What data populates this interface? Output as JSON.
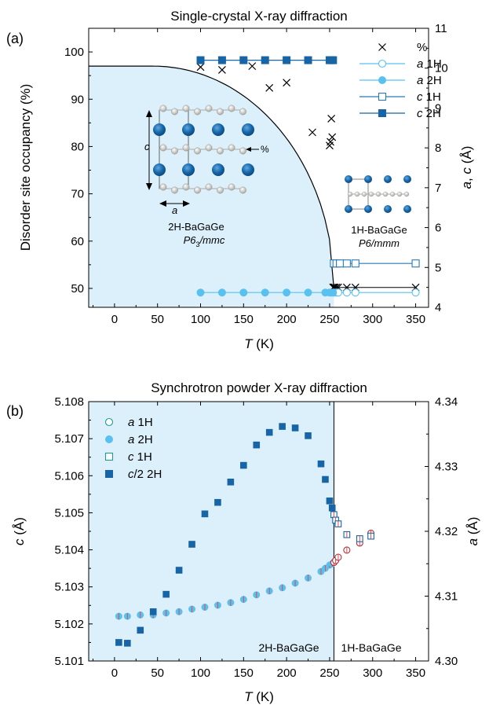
{
  "chart_data": [
    {
      "panel_label": "(a)",
      "type": "scatter",
      "title": "Single-crystal X-ray diffraction",
      "xlabel": "T (K)",
      "xlabel_italic": "T",
      "xlabel_unit": "(K)",
      "ylabel": "Disorder site occupancy (%)",
      "y2label": "a, c (Å)",
      "xlim": [
        -30,
        365
      ],
      "ylim": [
        46,
        105
      ],
      "y2lim": [
        4,
        11
      ],
      "xticks": [
        0,
        50,
        100,
        150,
        200,
        250,
        300,
        350
      ],
      "yticks": [
        50,
        60,
        70,
        80,
        90,
        100
      ],
      "y2ticks": [
        4,
        5,
        6,
        7,
        8,
        9,
        10,
        11
      ],
      "legend_position": "top-right",
      "legend": [
        {
          "marker": "x",
          "label": "%"
        },
        {
          "marker": "open-circle",
          "italic": "a",
          "rest": " 1H"
        },
        {
          "marker": "filled-circle",
          "italic": "a",
          "rest": " 2H"
        },
        {
          "marker": "open-square",
          "italic": "c",
          "rest": " 1H"
        },
        {
          "marker": "filled-square",
          "italic": "c",
          "rest": " 2H"
        }
      ],
      "series": [
        {
          "name": "%",
          "axis": "left",
          "marker": "x",
          "line": false,
          "x": [
            100,
            125,
            160,
            180,
            200,
            230,
            250,
            251,
            252,
            253,
            254,
            255,
            256,
            258,
            260,
            270,
            280,
            350
          ],
          "y": [
            96.8,
            96.2,
            97.0,
            92.4,
            93.5,
            83.0,
            80.2,
            81.0,
            85.9,
            82.0,
            50.2,
            50.2,
            50.2,
            50.2,
            50.2,
            50.2,
            50.2,
            50.2
          ]
        },
        {
          "name": "a 1H",
          "axis": "right",
          "marker": "open-circle",
          "color": "#58c1f0",
          "x": [
            255,
            258,
            260,
            270,
            280,
            350
          ],
          "y": [
            4.37,
            4.37,
            4.37,
            4.37,
            4.37,
            4.37
          ]
        },
        {
          "name": "a 2H",
          "axis": "right",
          "marker": "filled-circle",
          "color": "#58c1f0",
          "x": [
            100,
            125,
            150,
            175,
            200,
            225,
            245,
            250,
            252,
            254
          ],
          "y": [
            4.37,
            4.37,
            4.37,
            4.37,
            4.37,
            4.37,
            4.37,
            4.37,
            4.37,
            4.37
          ]
        },
        {
          "name": "c 1H",
          "axis": "right",
          "marker": "open-square",
          "color": "#2878b8",
          "x": [
            255,
            258,
            262,
            270,
            280,
            350
          ],
          "y": [
            5.1,
            5.1,
            5.1,
            5.1,
            5.1,
            5.1
          ]
        },
        {
          "name": "c 2H",
          "axis": "right",
          "marker": "filled-square",
          "color": "#1765a6",
          "x": [
            100,
            125,
            150,
            175,
            200,
            225,
            250,
            252,
            254
          ],
          "y": [
            10.2,
            10.2,
            10.2,
            10.2,
            10.2,
            10.2,
            10.2,
            10.2,
            10.2
          ]
        }
      ],
      "annotations": {
        "phase_2h_name": "2H-BaGaGe",
        "phase_2h_group": "P6",
        "phase_2h_group_sub": "3",
        "phase_2h_group_rest": "/mmc",
        "phase_1h_name": "1H-BaGaGe",
        "phase_1h_group": "P6/mmm",
        "inset_c": "c",
        "inset_a": "a",
        "inset_pct": "%"
      },
      "colors": {
        "shade": "#dcf0fb",
        "light": "#58c1f0",
        "dark": "#1765a6",
        "ball": "#1565a8",
        "small": "#bfbfb5"
      }
    },
    {
      "panel_label": "(b)",
      "type": "scatter",
      "title": "Synchrotron powder X-ray diffraction",
      "xlabel": "T (K)",
      "xlabel_italic": "T",
      "xlabel_unit": "(K)",
      "ylabel": "c (Å)",
      "y2label": "a (Å)",
      "xlim": [
        -30,
        365
      ],
      "ylim": [
        5.101,
        5.108
      ],
      "y2lim": [
        4.3,
        4.34
      ],
      "xticks": [
        0,
        50,
        100,
        150,
        200,
        250,
        300,
        350
      ],
      "yticks": [
        "5.101",
        "5.102",
        "5.103",
        "5.104",
        "5.105",
        "5.106",
        "5.107",
        "5.108"
      ],
      "y2ticks": [
        "4.30",
        "4.31",
        "4.32",
        "4.33",
        "4.34"
      ],
      "legend_position": "top-left",
      "legend": [
        {
          "marker": "open-circle",
          "italic": "a",
          "rest": " 1H"
        },
        {
          "marker": "filled-circle",
          "italic": "a",
          "rest": " 2H"
        },
        {
          "marker": "open-square",
          "italic": "c",
          "rest": " 1H"
        },
        {
          "marker": "filled-square",
          "italic": "c",
          "rest": "/2 2H"
        }
      ],
      "transition_T": 255,
      "series": [
        {
          "name": "a 2H",
          "axis": "right",
          "marker": "filled-circle",
          "x": [
            5,
            15,
            30,
            45,
            60,
            75,
            90,
            105,
            120,
            135,
            150,
            165,
            180,
            195,
            210,
            225,
            240,
            245,
            250,
            253
          ],
          "y": [
            4.3069,
            4.3069,
            4.3071,
            4.3071,
            4.3074,
            4.3076,
            4.308,
            4.3083,
            4.3086,
            4.309,
            4.3095,
            4.3102,
            4.3108,
            4.3113,
            4.312,
            4.3128,
            4.3138,
            4.3143,
            4.3148,
            4.315
          ]
        },
        {
          "name": "a 1H",
          "axis": "right",
          "marker": "open-circle",
          "x": [
            255,
            257,
            260,
            270,
            285,
            298
          ],
          "y": [
            4.3152,
            4.3155,
            4.316,
            4.3171,
            4.3182,
            4.3197
          ]
        },
        {
          "name": "c 1H",
          "axis": "left",
          "marker": "open-square",
          "x": [
            255,
            257,
            260,
            270,
            285,
            298
          ],
          "y": [
            5.10495,
            5.1048,
            5.1047,
            5.10441,
            5.1043,
            5.10437
          ]
        },
        {
          "name": "c/2 2H",
          "axis": "left",
          "marker": "filled-square",
          "x": [
            5,
            15,
            30,
            45,
            60,
            75,
            90,
            105,
            120,
            135,
            150,
            165,
            180,
            195,
            210,
            225,
            240,
            245,
            250,
            253
          ],
          "y": [
            5.1015,
            5.10148,
            5.10183,
            5.10233,
            5.1028,
            5.10345,
            5.10415,
            5.10497,
            5.10528,
            5.10583,
            5.10628,
            5.10683,
            5.10717,
            5.10733,
            5.10729,
            5.10708,
            5.10632,
            5.1059,
            5.10532,
            5.10513
          ]
        }
      ],
      "annotations": {
        "phase_2h_name": "2H-BaGaGe",
        "phase_1h_name": "1H-BaGaGe"
      },
      "colors": {
        "shade": "#dcf0fb",
        "light": "#58c1f0",
        "dark": "#1765a6",
        "redline": "#e8484a"
      }
    }
  ]
}
